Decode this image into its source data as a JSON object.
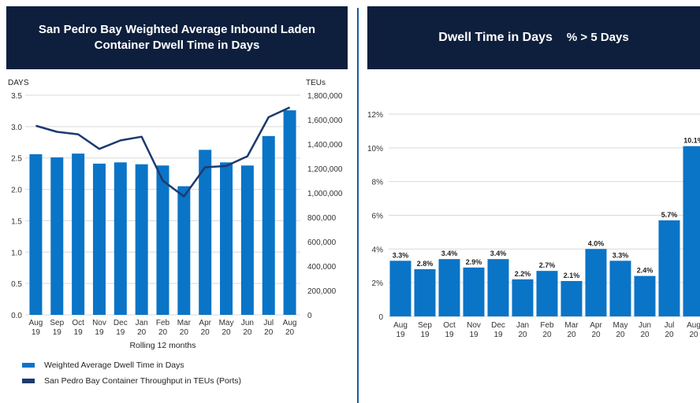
{
  "left_title": "San Pedro Bay Weighted Average Inbound Laden Container Dwell Time in Days",
  "right_title_main": "Dwell Time in Days",
  "right_title_sub": "% > 5 Days",
  "colors": {
    "bar": "#0a74c7",
    "line": "#1c3a6e",
    "banner": "#0e1f3d",
    "divider": "#1a5aa0"
  },
  "legend": {
    "bar_label": "Weighted Average Dwell Time in Days",
    "line_label": "San Pedro Bay Container Throughput in TEUs (Ports)"
  },
  "chart_data": [
    {
      "type": "bar",
      "categories": [
        "Aug 19",
        "Sep 19",
        "Oct 19",
        "Nov 19",
        "Dec 19",
        "Jan 20",
        "Feb 20",
        "Mar 20",
        "Apr 20",
        "May 20",
        "Jun 20",
        "Jul 20",
        "Aug 20"
      ],
      "series": [
        {
          "name": "Weighted Average Dwell Time in Days",
          "type": "bar",
          "axis": "left",
          "values": [
            2.56,
            2.51,
            2.57,
            2.41,
            2.43,
            2.4,
            2.38,
            2.05,
            2.63,
            2.43,
            2.38,
            2.85,
            3.26
          ]
        },
        {
          "name": "San Pedro Bay Container Throughput in TEUs (Ports)",
          "type": "line",
          "axis": "right",
          "values": [
            1550000,
            1500000,
            1480000,
            1360000,
            1430000,
            1460000,
            1100000,
            970000,
            1210000,
            1220000,
            1300000,
            1620000,
            1700000
          ]
        }
      ],
      "ylabel": "DAYS",
      "y2label": "TEUs",
      "xlabel": "Rolling 12 months",
      "ylim": [
        0,
        3.5
      ],
      "y2lim": [
        0,
        1800000
      ],
      "yticks": [
        "0.0",
        "0.5",
        "1.0",
        "1.5",
        "2.0",
        "2.5",
        "3.0",
        "3.5"
      ],
      "y2ticks": [
        "0",
        "200,000",
        "400,000",
        "600,000",
        "800,000",
        "1,000,000",
        "1,200,000",
        "1,400,000",
        "1,600,000",
        "1,800,000"
      ],
      "grid": true
    },
    {
      "type": "bar",
      "categories": [
        "Aug 19",
        "Sep 19",
        "Oct 19",
        "Nov 19",
        "Dec 19",
        "Jan 20",
        "Feb 20",
        "Mar 20",
        "Apr 20",
        "May 20",
        "Jun 20",
        "Jul 20",
        "Aug 20"
      ],
      "values": [
        3.3,
        2.8,
        3.4,
        2.9,
        3.4,
        2.2,
        2.7,
        2.1,
        4.0,
        3.3,
        2.4,
        5.7,
        10.1
      ],
      "labels": [
        "3.3%",
        "2.8%",
        "3.4%",
        "2.9%",
        "3.4%",
        "2.2%",
        "2.7%",
        "2.1%",
        "4.0%",
        "3.3%",
        "2.4%",
        "5.7%",
        "10.1%"
      ],
      "ylim": [
        0,
        12
      ],
      "yticks": [
        "0",
        "2%",
        "4%",
        "6%",
        "8%",
        "10%",
        "12%"
      ],
      "grid": true
    }
  ]
}
